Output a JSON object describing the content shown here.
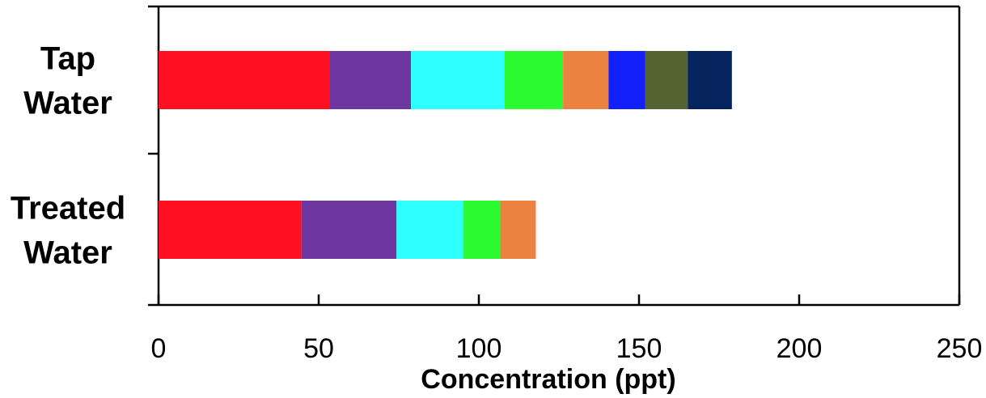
{
  "chart_data": {
    "type": "bar",
    "orientation": "horizontal",
    "stacked": true,
    "categories": [
      [
        "Tap",
        "Water"
      ],
      [
        "Treated",
        "Water"
      ]
    ],
    "segment_colors": [
      "#fe1020",
      "#6e37a0",
      "#2effff",
      "#2bfb30",
      "#ec8240",
      "#1221fb",
      "#536332",
      "#05235d"
    ],
    "segments": [
      [
        53.4,
        25.4,
        29.2,
        18.3,
        14.2,
        11.4,
        13.3,
        13.8
      ],
      [
        44.6,
        29.7,
        20.8,
        11.6,
        11.1
      ]
    ],
    "xlabel": "Concentration (ppt)",
    "ylabel": "",
    "xlim": [
      0,
      250
    ],
    "xticks": [
      "0",
      "50",
      "100",
      "150",
      "200",
      "250"
    ],
    "grid": false,
    "legend": "none"
  }
}
